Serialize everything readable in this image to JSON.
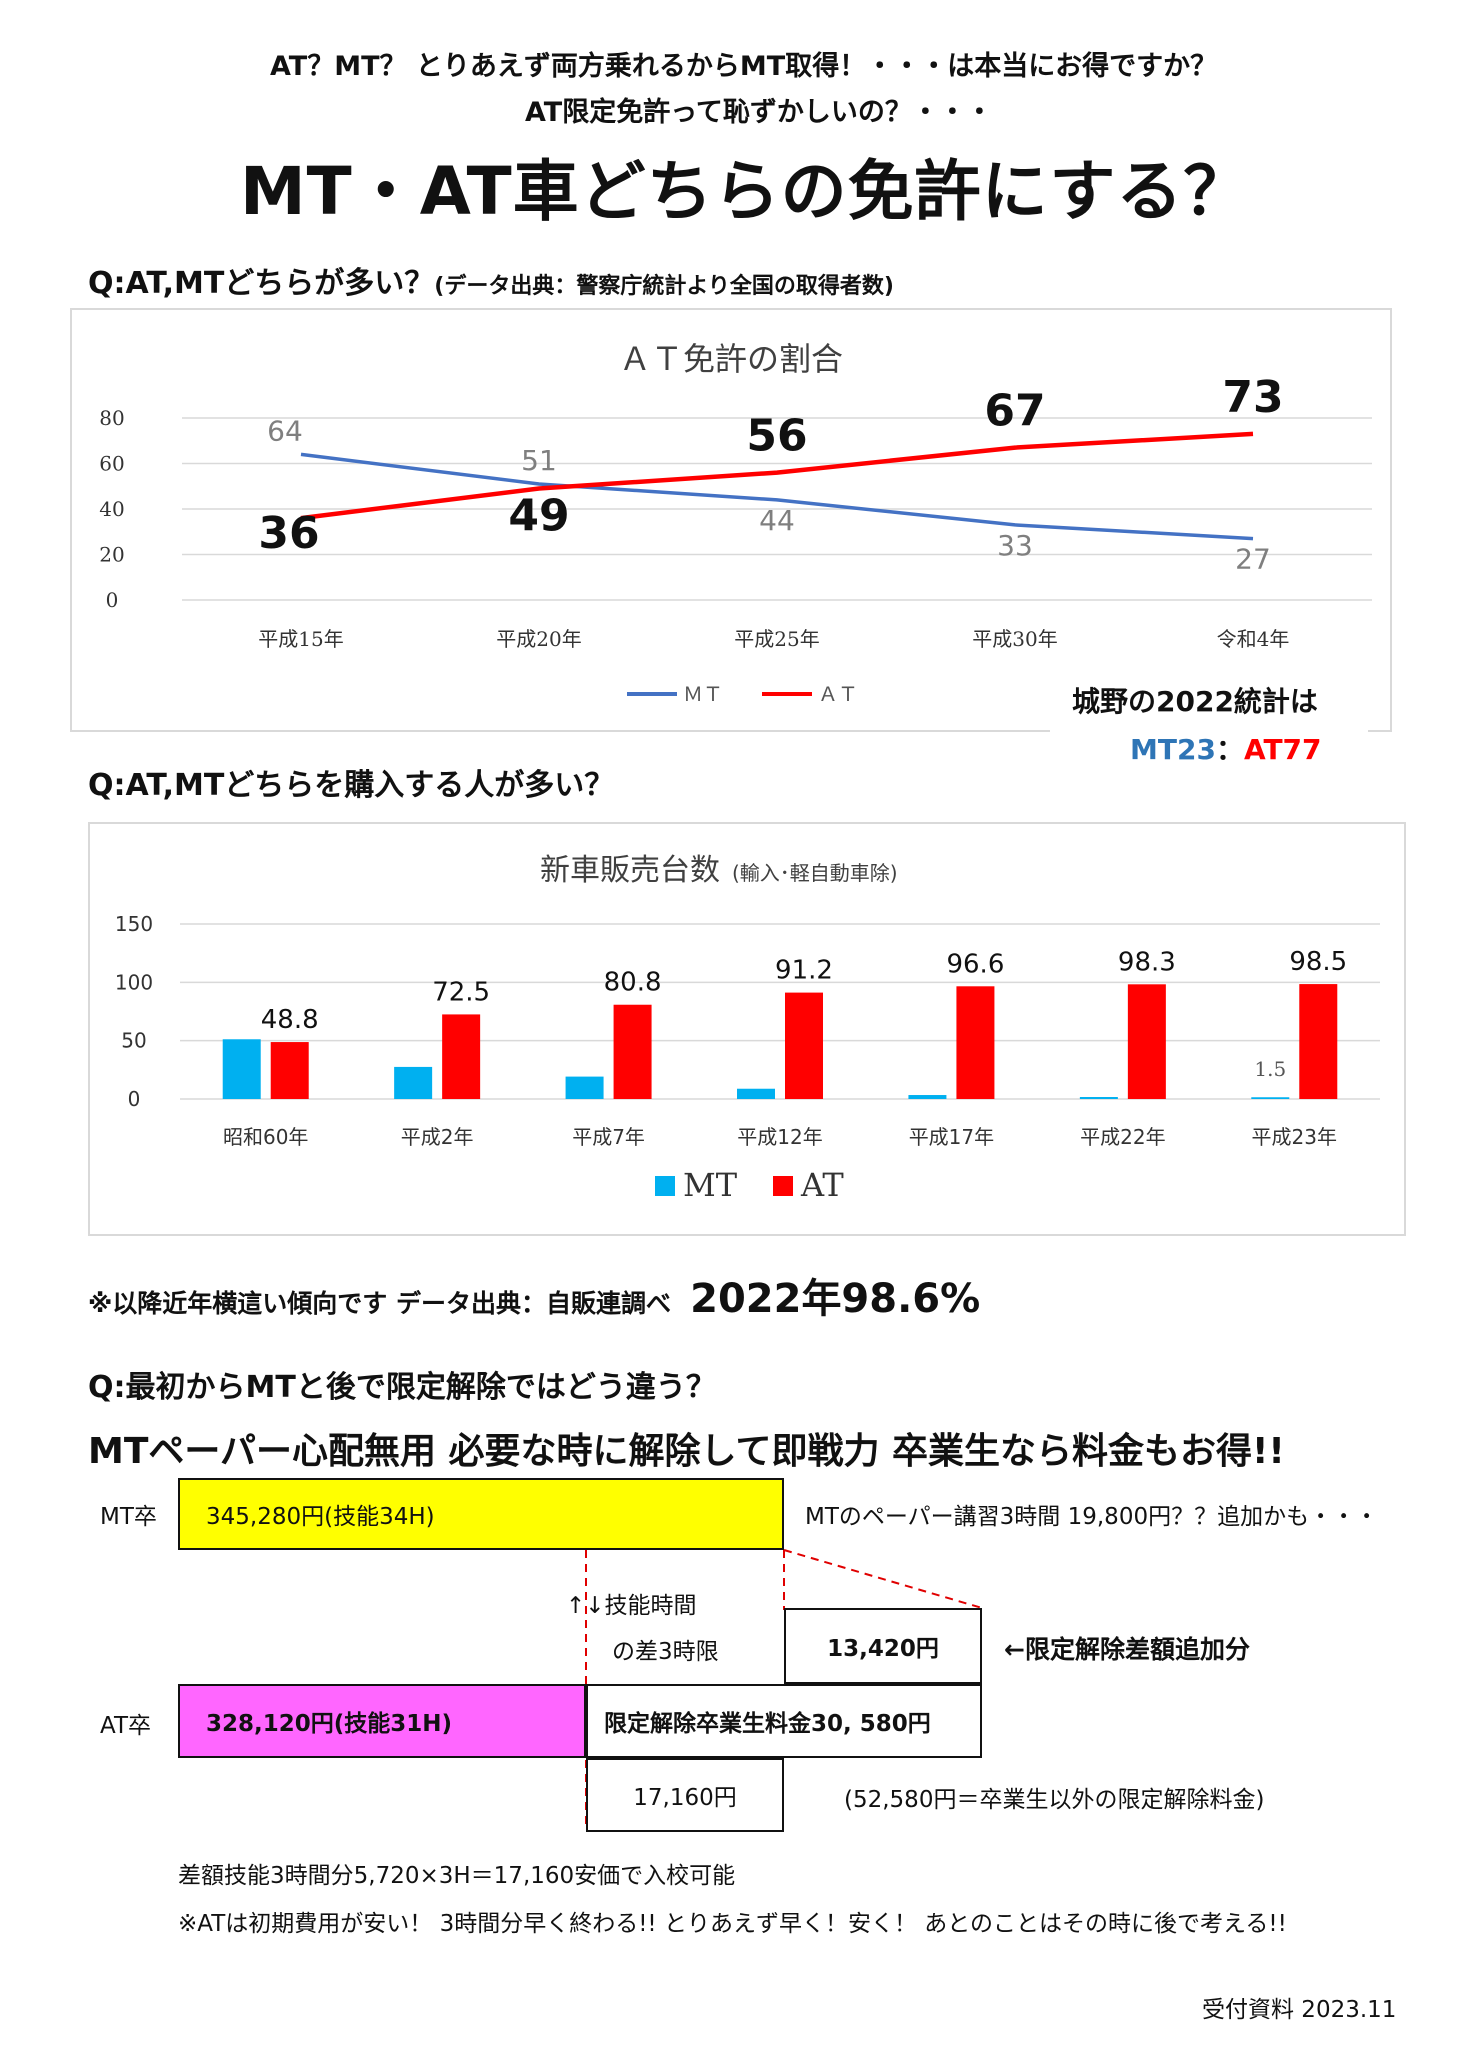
{
  "header": {
    "line1": "AT？MT？ とりあえず両方乗れるからMT取得！・・・は本当にお得ですか？",
    "line2": "AT限定免許って恥ずかしいの？・・・",
    "title": "MT・AT車どちらの免許にする？"
  },
  "q1": {
    "question": "Q:AT,MTどちらが多い？",
    "source": "(データ出典：警察庁統計より全国の取得者数)"
  },
  "chart1": {
    "type": "line",
    "title": "ＡＴ免許の割合",
    "categories": [
      "平成15年",
      "平成20年",
      "平成25年",
      "平成30年",
      "令和4年"
    ],
    "y_ticks": [
      "0",
      "20",
      "40",
      "60",
      "80"
    ],
    "ylim": [
      0,
      80
    ],
    "series": [
      {
        "name": "MT",
        "color": "#4472c4",
        "values": [
          64,
          51,
          44,
          33,
          27
        ]
      },
      {
        "name": "AT",
        "color": "#ff0000",
        "values": [
          36,
          49,
          56,
          67,
          73
        ]
      }
    ],
    "legend": [
      "MT",
      "AT"
    ],
    "legend_display": [
      "ＭＴ",
      "ＡＴ"
    ],
    "legend_position": "bottom"
  },
  "joyo_stat": {
    "label": "城野の2022統計は",
    "mt": "MT23",
    "sep": "：",
    "at": "AT77",
    "mt_color": "#2e75b6",
    "at_color": "#ff0000"
  },
  "q2": {
    "question": "Q:AT,MTどちらを購入する人が多い？"
  },
  "chart2": {
    "type": "bar",
    "title": "新車販売台数",
    "title_note": "(輸入･軽自動車除)",
    "categories": [
      "昭和60年",
      "平成2年",
      "平成7年",
      "平成12年",
      "平成17年",
      "平成22年",
      "平成23年"
    ],
    "y_ticks": [
      "0",
      "50",
      "100",
      "150"
    ],
    "ylim": [
      0,
      150
    ],
    "series": [
      {
        "name": "MT",
        "color": "#00b0f0",
        "values": [
          51.2,
          27.5,
          19.2,
          8.8,
          3.4,
          1.7,
          1.5
        ]
      },
      {
        "name": "AT",
        "color": "#ff0000",
        "values": [
          48.8,
          72.5,
          80.8,
          91.2,
          96.6,
          98.3,
          98.5
        ]
      }
    ],
    "at_labels": [
      "48.8",
      "72.5",
      "80.8",
      "91.2",
      "96.6",
      "98.3",
      "98.5"
    ],
    "mt_last_label": "1.5",
    "legend": [
      "MT",
      "AT"
    ],
    "legend_position": "bottom"
  },
  "trend": {
    "note": "※以降近年横這い傾向です データ出典：自販連調べ",
    "value": "2022年98.6%"
  },
  "q3": {
    "question": "Q:最初からMTと後で限定解除ではどう違う？",
    "headline": "MTペーパー心配無用 必要な時に解除して即戦力 卒業生なら料金もお得!!"
  },
  "diagram": {
    "mt_label": "MT卒",
    "mt_price": "345,280円(技能34H)",
    "mt_note": "MTのペーパー講習3時間 19,800円？？追加かも・・・",
    "arrow_text": "↑↓技能時間",
    "diff_text": "の差3時限",
    "diff_box": "13,420円",
    "diff_box_note": "←限定解除差額追加分",
    "at_label": "AT卒",
    "at_price": "328,120円(技能31H)",
    "release_fee": "限定解除卒業生料金30, 580円",
    "saving": "17,160円",
    "non_graduate_fee": "(52,580円＝卒業生以外の限定解除料金)",
    "mt_color": "#ffff00",
    "at_color": "#ff66ff"
  },
  "footer": {
    "line1": "差額技能3時間分5,720×3H＝17,160安価で入校可能",
    "line2": "※ATは初期費用が安い！ 3時間分早く終わる!! とりあえず早く！安く！ あとのことはその時に後で考える!!",
    "ref": "受付資料 2023.11"
  }
}
